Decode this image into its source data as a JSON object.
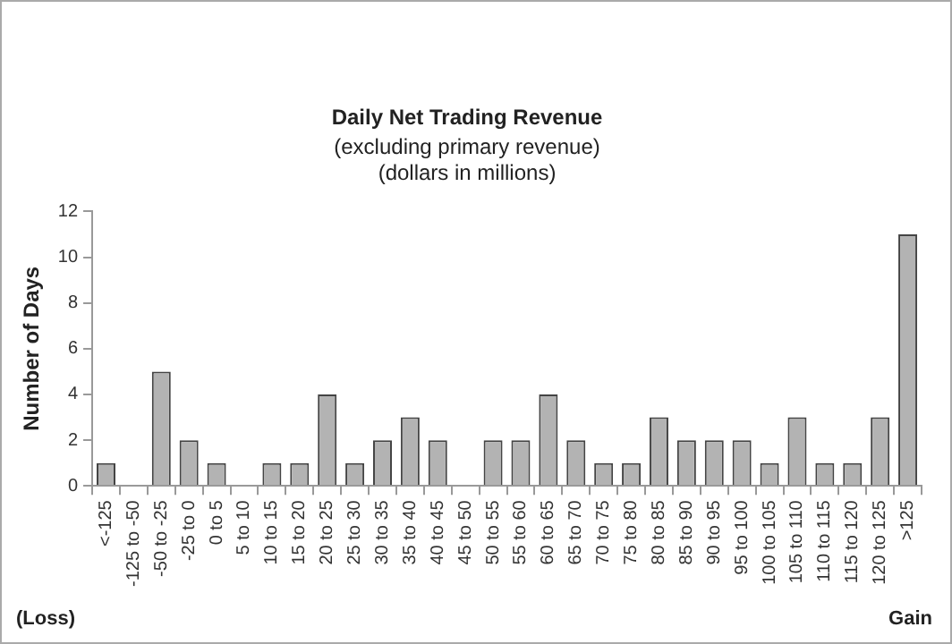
{
  "chart_data": {
    "type": "bar",
    "title": "Daily Net Trading Revenue",
    "subtitle": "(excluding primary revenue)\n(dollars in millions)",
    "ylabel": "Number of Days",
    "categories": [
      "<-125",
      "-125 to -50",
      "-50 to -25",
      "-25 to 0",
      "0 to 5",
      "5 to 10",
      "10 to 15",
      "15 to 20",
      "20 to 25",
      "25 to 30",
      "30 to 35",
      "35 to 40",
      "40 to 45",
      "45 to 50",
      "50 to 55",
      "55 to 60",
      "60 to 65",
      "65 to 70",
      "70 to 75",
      "75 to 80",
      "80 to 85",
      "85 to 90",
      "90 to 95",
      "95 to 100",
      "100 to 105",
      "105 to 110",
      "110 to 115",
      "115 to 120",
      "120 to 125",
      ">125"
    ],
    "values": [
      1,
      0,
      5,
      2,
      1,
      0,
      1,
      1,
      4,
      1,
      2,
      3,
      2,
      0,
      2,
      2,
      4,
      2,
      1,
      1,
      3,
      2,
      2,
      2,
      1,
      3,
      1,
      1,
      3,
      11
    ],
    "color": "#b3b3b3",
    "ylim": [
      0,
      12
    ],
    "yticks": [
      0,
      2,
      4,
      6,
      8,
      10,
      12
    ],
    "grid": false,
    "legend": false,
    "annotations": [
      "(Loss)",
      "Gain"
    ]
  }
}
